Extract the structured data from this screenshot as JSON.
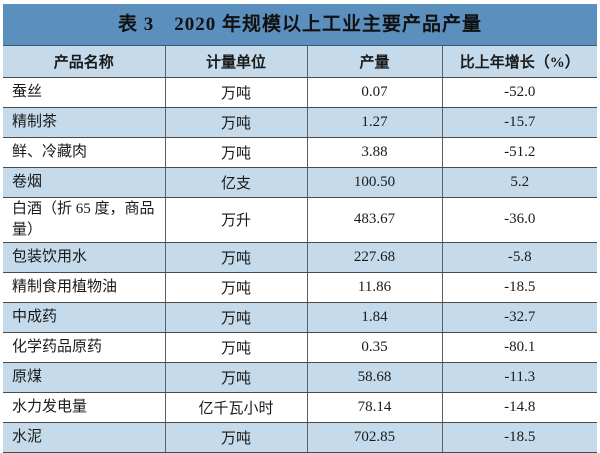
{
  "table": {
    "title": "表 3　2020 年规模以上工业主要产品产量",
    "columns": [
      "产品名称",
      "计量单位",
      "产量",
      "比上年增长（%）"
    ],
    "rows": [
      {
        "name": "蚕丝",
        "unit": "万吨",
        "output": "0.07",
        "growth": "-52.0"
      },
      {
        "name": "精制茶",
        "unit": "万吨",
        "output": "1.27",
        "growth": "-15.7"
      },
      {
        "name": "鲜、冷藏肉",
        "unit": "万吨",
        "output": "3.88",
        "growth": "-51.2"
      },
      {
        "name": "卷烟",
        "unit": "亿支",
        "output": "100.50",
        "growth": "5.2"
      },
      {
        "name": "白酒（折 65 度，商品量）",
        "unit": "万升",
        "output": "483.67",
        "growth": "-36.0"
      },
      {
        "name": "包装饮用水",
        "unit": "万吨",
        "output": "227.68",
        "growth": "-5.8"
      },
      {
        "name": "精制食用植物油",
        "unit": "万吨",
        "output": "11.86",
        "growth": "-18.5"
      },
      {
        "name": "中成药",
        "unit": "万吨",
        "output": "1.84",
        "growth": "-32.7"
      },
      {
        "name": "化学药品原药",
        "unit": "万吨",
        "output": "0.35",
        "growth": "-80.1"
      },
      {
        "name": "原煤",
        "unit": "万吨",
        "output": "58.68",
        "growth": "-11.3"
      },
      {
        "name": "水力发电量",
        "unit": "亿千瓦小时",
        "output": "78.14",
        "growth": "-14.8"
      },
      {
        "name": "水泥",
        "unit": "万吨",
        "output": "702.85",
        "growth": "-18.5"
      }
    ]
  },
  "colors": {
    "title_bar": "#5b8fbd",
    "row_band": "#c5dbeb",
    "row_plain": "#ffffff",
    "border": "#4a4a4a",
    "text": "#1a1a1a"
  }
}
